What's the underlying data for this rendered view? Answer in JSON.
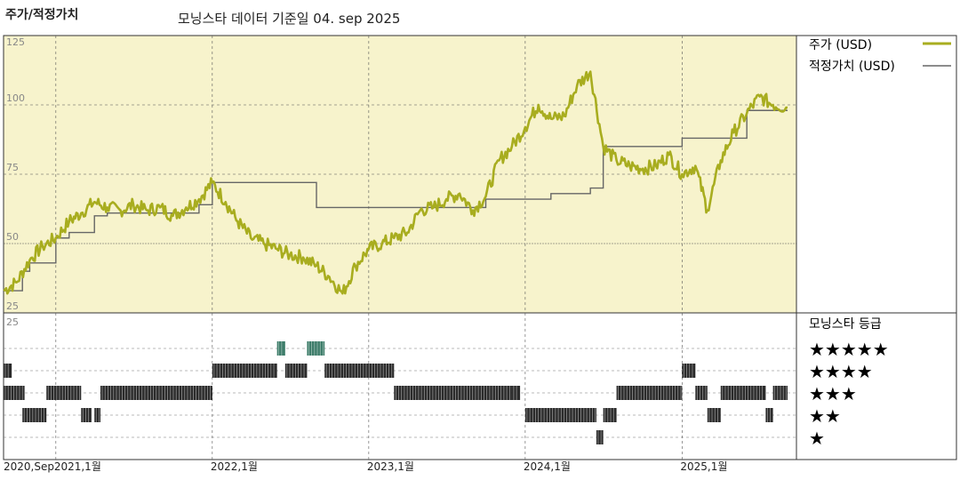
{
  "header": {
    "title": "주가/적정가치",
    "subtitle": "모닝스타 데이터 기준일 04. sep 2025"
  },
  "legend": {
    "price_label": "주가 (USD)",
    "fair_label": "적정가치 (USD)",
    "rating_title": "모닝스타 등급",
    "stars": [
      "★★★★★",
      "★★★★",
      "★★★",
      "★★",
      "★"
    ]
  },
  "colors": {
    "panel_bg": "#f7f3cc",
    "price_line": "#a8ad1f",
    "fair_line": "#666666",
    "star5": "#3e7d6a",
    "bars": "#2b2b2b"
  },
  "chart_data": [
    {
      "type": "line",
      "title": "주가/적정가치",
      "ylabel": "",
      "xlabel": "",
      "ylim": [
        25,
        125
      ],
      "yticks": [
        25,
        50,
        75,
        100,
        125
      ],
      "x_start": "2020-09-01",
      "x_end": "2025-09-04",
      "xtick_labels": [
        {
          "date": "2020-09-01",
          "label": "2020,Sep"
        },
        {
          "date": "2021-01-01",
          "label": "2021,1월"
        },
        {
          "date": "2022-01-01",
          "label": "2022,1월"
        },
        {
          "date": "2023-01-01",
          "label": "2023,1월"
        },
        {
          "date": "2024-01-01",
          "label": "2024,1월"
        },
        {
          "date": "2025-01-01",
          "label": "2025,1월"
        }
      ],
      "series": [
        {
          "name": "주가 (USD)",
          "points": [
            [
              "2020-09-01",
              33
            ],
            [
              "2020-10-01",
              36
            ],
            [
              "2020-11-01",
              44
            ],
            [
              "2020-12-01",
              49
            ],
            [
              "2021-01-01",
              52
            ],
            [
              "2021-02-01",
              58
            ],
            [
              "2021-03-01",
              61
            ],
            [
              "2021-04-01",
              65
            ],
            [
              "2021-05-01",
              63
            ],
            [
              "2021-06-01",
              62
            ],
            [
              "2021-07-01",
              64
            ],
            [
              "2021-08-01",
              62
            ],
            [
              "2021-09-01",
              63
            ],
            [
              "2021-10-01",
              60
            ],
            [
              "2021-11-01",
              63
            ],
            [
              "2021-12-01",
              66
            ],
            [
              "2022-01-01",
              72
            ],
            [
              "2022-02-01",
              65
            ],
            [
              "2022-03-01",
              58
            ],
            [
              "2022-04-01",
              52
            ],
            [
              "2022-05-01",
              50
            ],
            [
              "2022-06-01",
              48
            ],
            [
              "2022-07-01",
              46
            ],
            [
              "2022-08-01",
              45
            ],
            [
              "2022-09-01",
              42
            ],
            [
              "2022-10-01",
              38
            ],
            [
              "2022-11-01",
              32
            ],
            [
              "2022-12-01",
              42
            ],
            [
              "2023-01-01",
              48
            ],
            [
              "2023-02-01",
              50
            ],
            [
              "2023-03-01",
              52
            ],
            [
              "2023-04-01",
              54
            ],
            [
              "2023-05-01",
              62
            ],
            [
              "2023-06-01",
              63
            ],
            [
              "2023-07-01",
              66
            ],
            [
              "2023-08-01",
              68
            ],
            [
              "2023-09-01",
              62
            ],
            [
              "2023-10-01",
              67
            ],
            [
              "2023-11-01",
              80
            ],
            [
              "2023-12-01",
              85
            ],
            [
              "2024-01-01",
              92
            ],
            [
              "2024-02-01",
              100
            ],
            [
              "2024-03-01",
              95
            ],
            [
              "2024-04-01",
              96
            ],
            [
              "2024-05-01",
              107
            ],
            [
              "2024-06-01",
              112
            ],
            [
              "2024-07-01",
              85
            ],
            [
              "2024-08-01",
              80
            ],
            [
              "2024-09-01",
              78
            ],
            [
              "2024-10-01",
              77
            ],
            [
              "2024-11-01",
              78
            ],
            [
              "2024-12-01",
              82
            ],
            [
              "2025-01-01",
              75
            ],
            [
              "2025-02-01",
              78
            ],
            [
              "2025-03-01",
              62
            ],
            [
              "2025-04-01",
              80
            ],
            [
              "2025-05-01",
              90
            ],
            [
              "2025-06-01",
              97
            ],
            [
              "2025-07-01",
              103
            ],
            [
              "2025-08-01",
              100
            ],
            [
              "2025-09-04",
              99
            ]
          ]
        },
        {
          "name": "적정가치 (USD)",
          "step": true,
          "points": [
            [
              "2020-09-01",
              33
            ],
            [
              "2020-10-15",
              40
            ],
            [
              "2020-11-01",
              43
            ],
            [
              "2021-01-01",
              52
            ],
            [
              "2021-02-01",
              54
            ],
            [
              "2021-04-01",
              60
            ],
            [
              "2021-05-01",
              61
            ],
            [
              "2021-12-01",
              64
            ],
            [
              "2022-01-01",
              72
            ],
            [
              "2022-08-15",
              72
            ],
            [
              "2022-09-01",
              63
            ],
            [
              "2023-08-01",
              63
            ],
            [
              "2023-10-01",
              66
            ],
            [
              "2024-03-01",
              68
            ],
            [
              "2024-06-01",
              70
            ],
            [
              "2024-07-01",
              85
            ],
            [
              "2025-01-01",
              88
            ],
            [
              "2025-06-01",
              98
            ],
            [
              "2025-09-04",
              98
            ]
          ]
        }
      ]
    },
    {
      "type": "timeline",
      "title": "모닝스타 등급",
      "x_start": "2020-09-01",
      "x_end": "2025-09-04",
      "ratings": [
        {
          "from": "2020-09-01",
          "to": "2020-09-20",
          "stars": 4
        },
        {
          "from": "2020-09-01",
          "to": "2020-10-20",
          "stars": 3
        },
        {
          "from": "2020-10-15",
          "to": "2020-12-10",
          "stars": 2
        },
        {
          "from": "2020-12-10",
          "to": "2021-03-01",
          "stars": 3
        },
        {
          "from": "2021-03-01",
          "to": "2021-03-25",
          "stars": 2
        },
        {
          "from": "2021-04-01",
          "to": "2021-04-15",
          "stars": 2
        },
        {
          "from": "2021-04-15",
          "to": "2022-01-01",
          "stars": 3
        },
        {
          "from": "2022-01-01",
          "to": "2022-06-01",
          "stars": 4
        },
        {
          "from": "2022-06-01",
          "to": "2022-06-20",
          "stars": 5
        },
        {
          "from": "2022-06-20",
          "to": "2022-08-10",
          "stars": 4
        },
        {
          "from": "2022-08-10",
          "to": "2022-09-20",
          "stars": 5
        },
        {
          "from": "2022-09-20",
          "to": "2023-03-01",
          "stars": 4
        },
        {
          "from": "2023-03-01",
          "to": "2023-12-01",
          "stars": 3
        },
        {
          "from": "2023-12-01",
          "to": "2023-12-20",
          "stars": 3
        },
        {
          "from": "2024-01-01",
          "to": "2024-06-15",
          "stars": 2
        },
        {
          "from": "2024-06-15",
          "to": "2024-07-01",
          "stars": 1
        },
        {
          "from": "2024-07-01",
          "to": "2024-08-01",
          "stars": 2
        },
        {
          "from": "2024-08-01",
          "to": "2025-01-01",
          "stars": 3
        },
        {
          "from": "2025-01-01",
          "to": "2025-02-01",
          "stars": 4
        },
        {
          "from": "2025-02-01",
          "to": "2025-03-01",
          "stars": 3
        },
        {
          "from": "2025-03-01",
          "to": "2025-04-01",
          "stars": 2
        },
        {
          "from": "2025-04-01",
          "to": "2025-07-15",
          "stars": 3
        },
        {
          "from": "2025-07-15",
          "to": "2025-08-01",
          "stars": 2
        },
        {
          "from": "2025-08-01",
          "to": "2025-09-04",
          "stars": 3
        }
      ]
    }
  ]
}
